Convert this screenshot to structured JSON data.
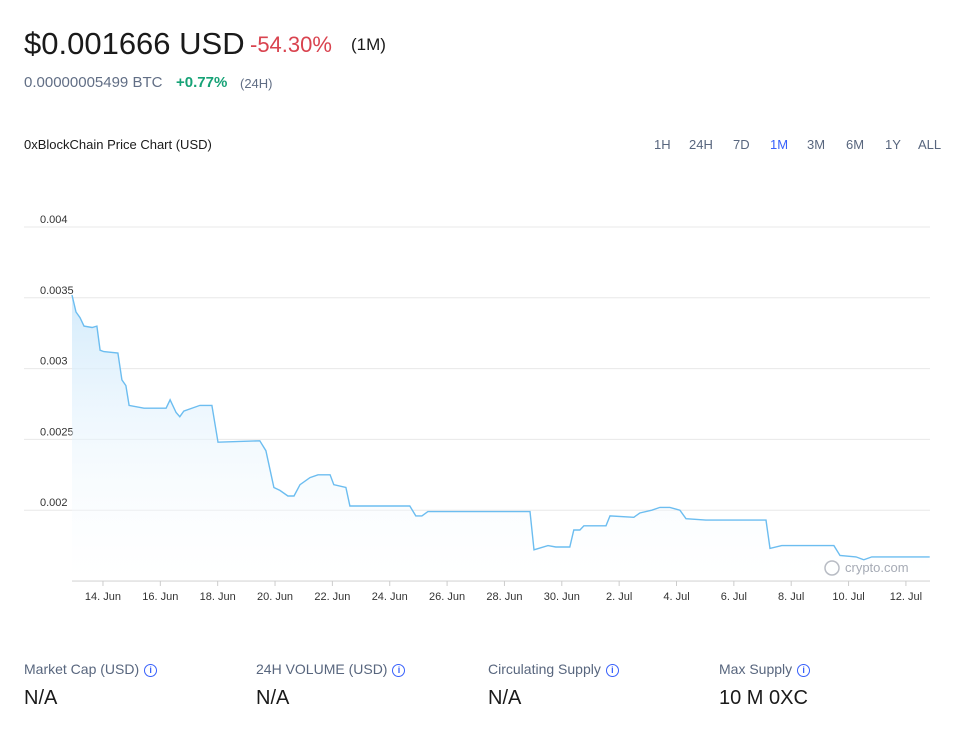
{
  "header": {
    "price": "$0.001666 USD",
    "change": "-54.30%",
    "period": "(1M)",
    "btc_price": "0.00000005499 BTC",
    "btc_change": "+0.77%",
    "btc_period": "(24H)"
  },
  "chart_header": {
    "title": "0xBlockChain Price Chart (USD)",
    "ranges": [
      "1H",
      "24H",
      "7D",
      "1M",
      "3M",
      "6M",
      "1Y",
      "ALL"
    ],
    "active_range": 3
  },
  "chart_data": {
    "type": "line",
    "color": "#6cbdf0",
    "grid": true,
    "watermark": "crypto.com",
    "x": [
      12.92,
      13.06,
      13.2,
      13.34,
      13.62,
      13.79,
      13.9,
      14.03,
      14.52,
      14.66,
      14.8,
      14.91,
      15.43,
      16.2,
      16.34,
      16.55,
      16.68,
      16.82,
      17.38,
      17.8,
      18.01,
      19.47,
      19.68,
      19.96,
      20.17,
      20.45,
      20.66,
      20.87,
      21.22,
      21.5,
      21.92,
      22.05,
      22.47,
      22.61,
      23.31,
      24.7,
      24.91,
      25.12,
      25.33,
      28.89,
      29.03,
      29.52,
      29.79,
      30.28,
      30.42,
      30.63,
      30.77,
      31.54,
      31.68,
      32.51,
      32.72,
      33.14,
      33.42,
      33.77,
      34.12,
      34.33,
      35.02,
      37.12,
      37.26,
      37.67,
      39.49,
      39.7,
      40.26,
      40.53,
      40.81,
      42.83
    ],
    "series": [
      {
        "name": "0xBlockChain",
        "values": [
          0.00352,
          0.0034,
          0.00336,
          0.0033,
          0.00329,
          0.0033,
          0.00313,
          0.00312,
          0.00311,
          0.00292,
          0.00288,
          0.00274,
          0.00272,
          0.00272,
          0.00278,
          0.00269,
          0.00266,
          0.0027,
          0.00274,
          0.00274,
          0.00248,
          0.00249,
          0.00242,
          0.00216,
          0.00214,
          0.0021,
          0.0021,
          0.00218,
          0.00223,
          0.00225,
          0.00225,
          0.00218,
          0.00216,
          0.00203,
          0.00203,
          0.00203,
          0.00196,
          0.00196,
          0.00199,
          0.00199,
          0.00172,
          0.00175,
          0.00174,
          0.00174,
          0.00186,
          0.00186,
          0.00189,
          0.00189,
          0.00196,
          0.00195,
          0.00198,
          0.002,
          0.00202,
          0.00202,
          0.002,
          0.00194,
          0.00193,
          0.00193,
          0.00173,
          0.00175,
          0.00175,
          0.00168,
          0.00167,
          0.00165,
          0.00167,
          0.00167
        ]
      }
    ],
    "xlim": [
      12.92,
      42.84
    ],
    "xticks": [
      {
        "value": 14,
        "label": "14. Jun"
      },
      {
        "value": 16,
        "label": "16. Jun"
      },
      {
        "value": 18,
        "label": "18. Jun"
      },
      {
        "value": 20,
        "label": "20. Jun"
      },
      {
        "value": 22,
        "label": "22. Jun"
      },
      {
        "value": 24,
        "label": "24. Jun"
      },
      {
        "value": 26,
        "label": "26. Jun"
      },
      {
        "value": 28,
        "label": "28. Jun"
      },
      {
        "value": 30,
        "label": "30. Jun"
      },
      {
        "value": 32,
        "label": "2. Jul"
      },
      {
        "value": 34,
        "label": "4. Jul"
      },
      {
        "value": 36,
        "label": "6. Jul"
      },
      {
        "value": 38,
        "label": "8. Jul"
      },
      {
        "value": 40,
        "label": "10. Jul"
      },
      {
        "value": 42,
        "label": "12. Jul"
      }
    ],
    "ylim": [
      0.0015,
      0.004
    ],
    "yticks": [
      0.002,
      0.0025,
      0.003,
      0.0035,
      0.004
    ]
  },
  "stats": [
    {
      "label": "Market Cap (USD)",
      "value": "N/A"
    },
    {
      "label": "24H VOLUME (USD)",
      "value": "N/A"
    },
    {
      "label": "Circulating Supply",
      "value": "N/A"
    },
    {
      "label": "Max Supply",
      "value": "10 M 0XC"
    }
  ]
}
